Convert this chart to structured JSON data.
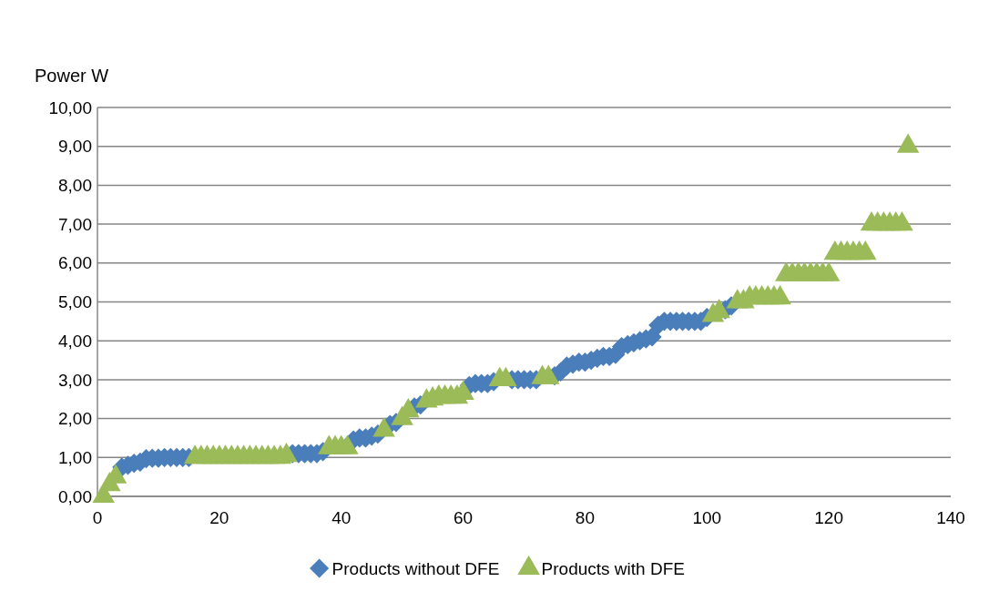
{
  "chart_data": {
    "type": "scatter",
    "ylabel": "Power W",
    "xlim": [
      0,
      140
    ],
    "xticks": [
      0,
      20,
      40,
      60,
      80,
      100,
      120,
      140
    ],
    "ylim": [
      0,
      10
    ],
    "yticks": [
      {
        "value": 0,
        "label": "0,00"
      },
      {
        "value": 1,
        "label": "1,00"
      },
      {
        "value": 2,
        "label": "2,00"
      },
      {
        "value": 3,
        "label": "3,00"
      },
      {
        "value": 4,
        "label": "4,00"
      },
      {
        "value": 5,
        "label": "5,00"
      },
      {
        "value": 6,
        "label": "6,00"
      },
      {
        "value": 7,
        "label": "7,00"
      },
      {
        "value": 8,
        "label": "8,00"
      },
      {
        "value": 9,
        "label": "9,00"
      },
      {
        "value": 10,
        "label": "10,00"
      }
    ],
    "grid": "y",
    "legend": "bottom",
    "series": [
      {
        "name": "Products without DFE",
        "color": "#4a7ebb",
        "marker": "diamond",
        "x": [
          4,
          5,
          6,
          7,
          8,
          9,
          10,
          11,
          12,
          13,
          14,
          15,
          32,
          33,
          34,
          35,
          36,
          37,
          42,
          43,
          44,
          45,
          46,
          48,
          49,
          52,
          53,
          61,
          62,
          63,
          64,
          65,
          68,
          69,
          70,
          71,
          72,
          75,
          76,
          77,
          78,
          79,
          80,
          81,
          82,
          83,
          84,
          85,
          86,
          87,
          88,
          89,
          90,
          91,
          92,
          93,
          94,
          95,
          96,
          97,
          98,
          99,
          100,
          103,
          104
        ],
        "values": [
          0.75,
          0.8,
          0.85,
          0.88,
          0.97,
          0.98,
          0.98,
          1.0,
          1.0,
          1.0,
          1.0,
          1.0,
          1.1,
          1.1,
          1.1,
          1.1,
          1.1,
          1.15,
          1.45,
          1.5,
          1.5,
          1.55,
          1.6,
          1.85,
          1.9,
          2.3,
          2.35,
          2.85,
          2.9,
          2.9,
          2.9,
          2.95,
          3.0,
          3.0,
          3.0,
          3.0,
          3.0,
          3.1,
          3.2,
          3.35,
          3.4,
          3.45,
          3.45,
          3.5,
          3.55,
          3.6,
          3.6,
          3.65,
          3.85,
          3.9,
          3.95,
          4.0,
          4.05,
          4.1,
          4.4,
          4.5,
          4.5,
          4.5,
          4.5,
          4.5,
          4.5,
          4.5,
          4.6,
          4.8,
          4.9
        ]
      },
      {
        "name": "Products with DFE",
        "color": "#9bbb59",
        "marker": "triangle",
        "x": [
          1,
          2,
          3,
          16,
          17,
          18,
          19,
          20,
          21,
          22,
          23,
          24,
          25,
          26,
          27,
          28,
          29,
          30,
          31,
          38,
          39,
          40,
          41,
          47,
          50,
          51,
          54,
          55,
          56,
          57,
          58,
          59,
          60,
          66,
          67,
          73,
          74,
          101,
          102,
          105,
          106,
          107,
          108,
          109,
          110,
          111,
          112,
          113,
          114,
          115,
          116,
          117,
          118,
          119,
          120,
          121,
          122,
          123,
          124,
          125,
          126,
          127,
          128,
          129,
          130,
          131,
          132,
          133
        ],
        "values": [
          0.0,
          0.3,
          0.5,
          1.0,
          1.0,
          1.0,
          1.0,
          1.0,
          1.0,
          1.0,
          1.0,
          1.0,
          1.0,
          1.0,
          1.0,
          1.0,
          1.0,
          1.0,
          1.05,
          1.25,
          1.25,
          1.25,
          1.25,
          1.7,
          2.0,
          2.2,
          2.45,
          2.5,
          2.55,
          2.55,
          2.55,
          2.55,
          2.65,
          3.0,
          3.0,
          3.05,
          3.05,
          4.65,
          4.75,
          5.0,
          5.0,
          5.1,
          5.1,
          5.1,
          5.1,
          5.1,
          5.1,
          5.7,
          5.7,
          5.7,
          5.7,
          5.7,
          5.7,
          5.7,
          5.7,
          6.25,
          6.25,
          6.25,
          6.25,
          6.25,
          6.25,
          7.0,
          7.0,
          7.0,
          7.0,
          7.0,
          7.0,
          9.0
        ]
      }
    ]
  }
}
